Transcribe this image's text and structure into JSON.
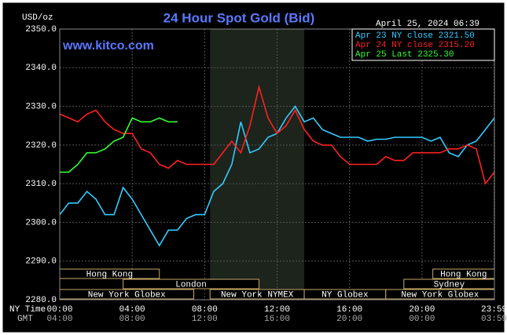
{
  "chart_data": {
    "type": "line",
    "title": "24 Hour Spot Gold (Bid)",
    "unit_label": "USD/oz",
    "timestamp": "April 25, 2024 06:39",
    "watermark": "www.kitco.com",
    "x_row_labels": [
      "NY Time",
      "GMT"
    ],
    "x": [
      0,
      0.5,
      1,
      1.5,
      2,
      2.5,
      3,
      3.5,
      4,
      4.5,
      5,
      5.5,
      6,
      6.5,
      7,
      7.5,
      8,
      8.5,
      9,
      9.5,
      10,
      10.5,
      11,
      11.5,
      12,
      12.5,
      13,
      13.5,
      14,
      14.5,
      15,
      15.5,
      16,
      16.5,
      17,
      17.5,
      18,
      18.5,
      19,
      19.5,
      20,
      20.5,
      21,
      21.5,
      22,
      22.5,
      23,
      23.5,
      24
    ],
    "xlim": [
      0,
      24
    ],
    "xticks": [
      {
        "value": 0,
        "label": "00:00"
      },
      {
        "value": 4,
        "label": "04:00"
      },
      {
        "value": 8,
        "label": "08:00"
      },
      {
        "value": 12,
        "label": "12:00"
      },
      {
        "value": 16,
        "label": "16:00"
      },
      {
        "value": 20,
        "label": "20:00"
      },
      {
        "value": 23.98,
        "label": "23:59"
      }
    ],
    "gmt_labels": [
      "04:00",
      "08:00",
      "12:00",
      "16:00",
      "20:00",
      "00:00",
      "03:59"
    ],
    "ylim": [
      2280,
      2350
    ],
    "yticks": [
      {
        "value": 2280,
        "label": "2280.0"
      },
      {
        "value": 2290,
        "label": "2290.0"
      },
      {
        "value": 2300,
        "label": "2300.0"
      },
      {
        "value": 2310,
        "label": "2310.0"
      },
      {
        "value": 2320,
        "label": "2320.0"
      },
      {
        "value": 2330,
        "label": "2330.0"
      },
      {
        "value": 2340,
        "label": "2340.0"
      },
      {
        "value": 2350,
        "label": "2350.0"
      }
    ],
    "grid": true,
    "shaded_region": [
      8.3,
      13.5
    ],
    "series": [
      {
        "name": "Apr 23 NY close 2321.50",
        "color": "#33ccff",
        "values": [
          2302,
          2305,
          2305,
          2308,
          2306,
          2302,
          2302,
          2309,
          2306,
          2302,
          2298,
          2294,
          2298,
          2298,
          2301,
          2302,
          2302,
          2308,
          2310,
          2315,
          2326,
          2318,
          2319,
          2322,
          2323,
          2327,
          2330,
          2326,
          2327,
          2324,
          2323,
          2322,
          2322,
          2322,
          2321,
          2321.5,
          2321.5,
          2322,
          2322,
          2322,
          2322,
          2321,
          2322,
          2318,
          2317,
          2320,
          2321,
          2324,
          2327
        ]
      },
      {
        "name": "Apr 24 NY close 2315.20",
        "color": "#ff2020",
        "values": [
          2328,
          2327,
          2326,
          2328,
          2329,
          2326,
          2324,
          2323,
          2323,
          2319,
          2318,
          2315,
          2314,
          2316,
          2315,
          2315,
          2315,
          2315,
          2318,
          2321,
          2318,
          2325,
          2335,
          2327,
          2323,
          2325,
          2329,
          2324,
          2321,
          2320,
          2320,
          2317,
          2315,
          2315,
          2315,
          2315,
          2317,
          2316,
          2316,
          2318,
          2318,
          2318,
          2318,
          2319,
          2319,
          2320,
          2319,
          2310,
          2313
        ]
      },
      {
        "name": "Apr 25 Last 2325.30",
        "color": "#33ff33",
        "values": [
          2313,
          2313,
          2315,
          2318,
          2318,
          2319,
          2321,
          2322,
          2327,
          2326,
          2326,
          2327,
          2326,
          2326,
          null,
          null,
          null,
          null,
          null,
          null,
          null,
          null,
          null,
          null,
          null,
          null,
          null,
          null,
          null,
          null,
          null,
          null,
          null,
          null,
          null,
          null,
          null,
          null,
          null,
          null,
          null,
          null,
          null,
          null,
          null,
          null,
          null,
          null,
          null
        ]
      }
    ],
    "sessions": [
      {
        "label": "Hong Kong",
        "start": 0,
        "end": 5.5
      },
      {
        "label": "Hong Kong",
        "start": 20.6,
        "end": 24
      },
      {
        "label": "London",
        "start": 3.5,
        "end": 11
      },
      {
        "label": "Sydney",
        "start": 19,
        "end": 24
      },
      {
        "label": "New York Globex",
        "start": 0,
        "end": 7.4
      },
      {
        "label": "New York NYMEX",
        "start": 8.3,
        "end": 13.5
      },
      {
        "label": "NY Globex",
        "start": 13.5,
        "end": 18
      },
      {
        "label": "New York Globex",
        "start": 18,
        "end": 24
      }
    ]
  }
}
